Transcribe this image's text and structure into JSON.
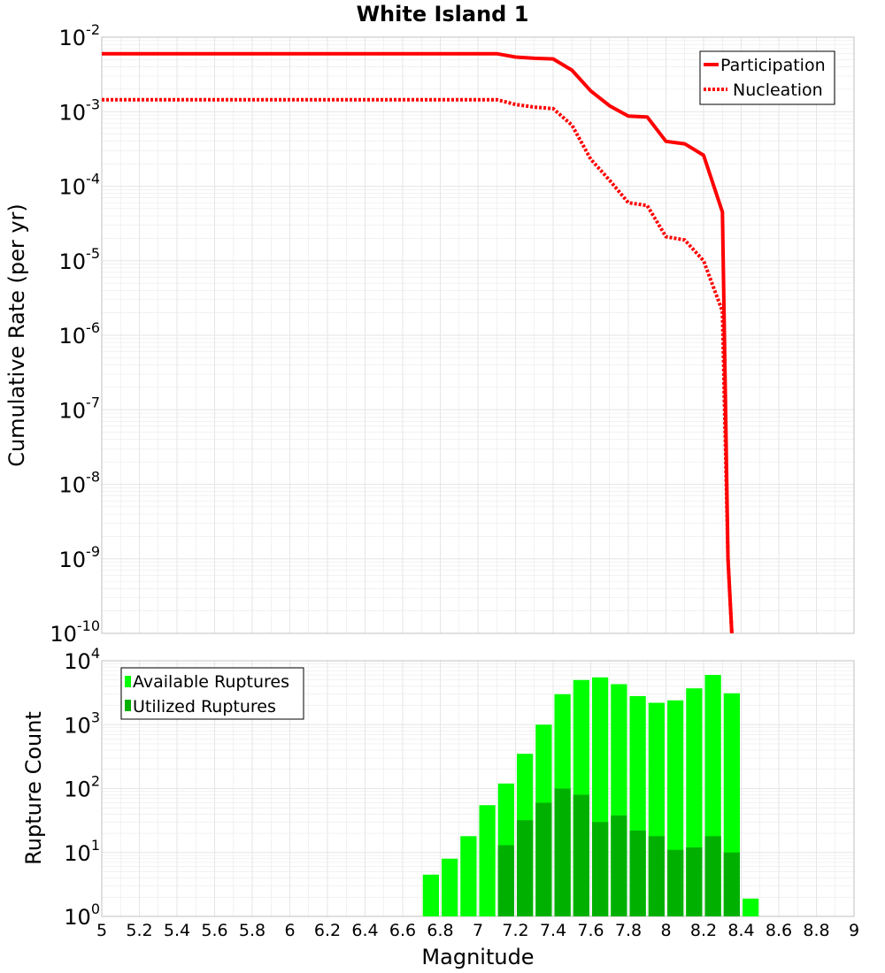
{
  "title": "White Island 1",
  "colors": {
    "participation": "#ff0000",
    "nucleation": "#ff0000",
    "available": "#00ff00",
    "utilized": "#00b000",
    "grid": "#e6e6e6",
    "frame": "#c0c0c0"
  },
  "chart_data": [
    {
      "type": "line",
      "title": "White Island 1",
      "xlabel": "",
      "ylabel": "Cumulative Rate (per yr)",
      "xlim": [
        5,
        9
      ],
      "ylim": [
        1e-10,
        0.01
      ],
      "yscale": "log",
      "grid": true,
      "legend_position": "top-right",
      "y_tick_labels": [
        "10^-10",
        "10^-9",
        "10^-8",
        "10^-7",
        "10^-6",
        "10^-5",
        "10^-4",
        "10^-3",
        "10^-2"
      ],
      "series": [
        {
          "name": "Participation",
          "style": "solid",
          "x": [
            5.0,
            7.1,
            7.2,
            7.3,
            7.4,
            7.5,
            7.6,
            7.7,
            7.8,
            7.9,
            8.0,
            8.1,
            8.2,
            8.3,
            8.33,
            8.35
          ],
          "y": [
            0.006,
            0.006,
            0.0054,
            0.0052,
            0.0051,
            0.0036,
            0.0019,
            0.0012,
            0.00087,
            0.00085,
            0.0004,
            0.00037,
            0.00026,
            4.5e-05,
            1e-09,
            1e-10
          ]
        },
        {
          "name": "Nucleation",
          "style": "dotted",
          "x": [
            5.0,
            7.1,
            7.2,
            7.3,
            7.4,
            7.5,
            7.6,
            7.7,
            7.8,
            7.9,
            8.0,
            8.1,
            8.2,
            8.3,
            8.33,
            8.35
          ],
          "y": [
            0.00145,
            0.00145,
            0.00125,
            0.00115,
            0.0011,
            0.00066,
            0.00023,
            0.00012,
            6e-05,
            5.5e-05,
            2.1e-05,
            1.9e-05,
            1e-05,
            2.1e-06,
            1e-09,
            1e-10
          ]
        }
      ]
    },
    {
      "type": "bar",
      "xlabel": "Magnitude",
      "ylabel": "Rupture Count",
      "xlim": [
        5,
        9
      ],
      "ylim": [
        1,
        10000
      ],
      "yscale": "log",
      "grid": true,
      "legend_position": "top-left",
      "x_tick_labels": [
        "5",
        "5.2",
        "5.4",
        "5.6",
        "5.8",
        "6",
        "6.2",
        "6.4",
        "6.6",
        "6.8",
        "7",
        "7.2",
        "7.4",
        "7.6",
        "7.8",
        "8",
        "8.2",
        "8.4",
        "8.6",
        "8.8",
        "9"
      ],
      "y_tick_labels": [
        "10^0",
        "10^1",
        "10^2",
        "10^3",
        "10^4"
      ],
      "bin_width": 0.1,
      "x": [
        6.75,
        6.85,
        6.95,
        7.05,
        7.15,
        7.25,
        7.35,
        7.45,
        7.55,
        7.65,
        7.75,
        7.85,
        7.95,
        8.05,
        8.15,
        8.25,
        8.35,
        8.45
      ],
      "series": [
        {
          "name": "Available Ruptures",
          "values": [
            4.5,
            8,
            18,
            55,
            120,
            350,
            1000,
            3000,
            5000,
            5500,
            4300,
            2800,
            2200,
            2400,
            3700,
            6000,
            3100,
            1.9
          ]
        },
        {
          "name": "Utilized Ruptures",
          "values": [
            0,
            0,
            0,
            0,
            13,
            32,
            60,
            100,
            80,
            30,
            38,
            22,
            18,
            11,
            12,
            18,
            10,
            0
          ]
        }
      ]
    }
  ]
}
